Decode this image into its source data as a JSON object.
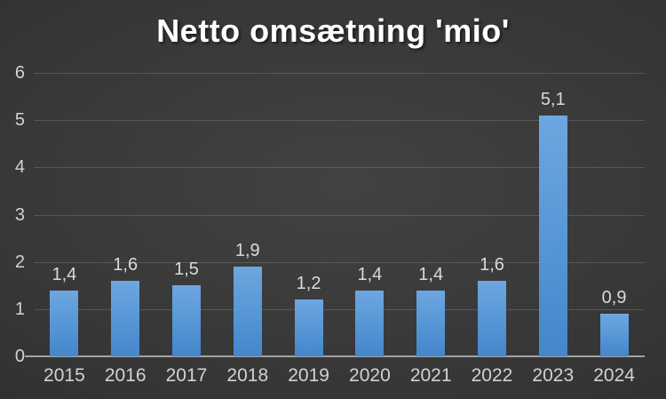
{
  "title": "Netto omsætning 'mio'",
  "chart_data": {
    "type": "bar",
    "title": "Netto omsætning 'mio'",
    "categories": [
      "2015",
      "2016",
      "2017",
      "2018",
      "2019",
      "2020",
      "2021",
      "2022",
      "2023",
      "2024"
    ],
    "values": [
      1.4,
      1.6,
      1.5,
      1.9,
      1.2,
      1.4,
      1.4,
      1.6,
      5.1,
      0.9
    ],
    "value_labels": [
      "1,4",
      "1,6",
      "1,5",
      "1,9",
      "1,2",
      "1,4",
      "1,4",
      "1,6",
      "5,1",
      "0,9"
    ],
    "xlabel": "",
    "ylabel": "",
    "ylim": [
      0,
      6
    ],
    "yticks": [
      0,
      1,
      2,
      3,
      4,
      5,
      6
    ],
    "grid": true,
    "legend": false,
    "colors": {
      "bar_top": "#6ea6e0",
      "bar_bottom": "#4486cb",
      "background_center": "#424242",
      "background_edge": "#222222",
      "gridline": "rgba(255,255,255,0.15)",
      "axis_line": "#a3a3a3",
      "tick_label": "#d2d2d2",
      "data_label": "#dadada",
      "title": "#ffffff"
    }
  }
}
